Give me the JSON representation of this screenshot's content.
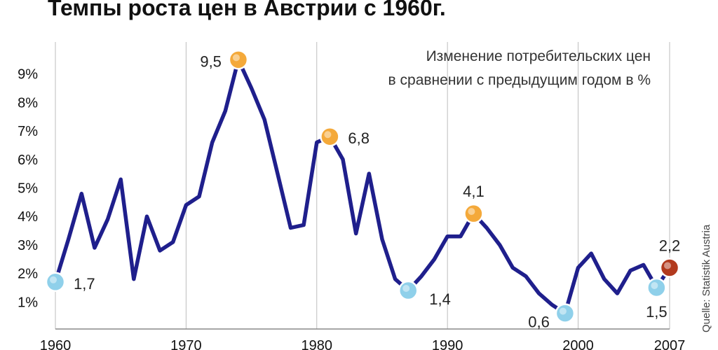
{
  "chart_data": {
    "type": "line",
    "title": "Темпы роста цен в Австрии с 1960г.",
    "annotation": [
      "Изменение потребительских цен",
      "в сравнении с предыдущим годом в %"
    ],
    "source": "Quelle: Statistik Austria",
    "x_ticks": [
      "1960",
      "1970",
      "1980",
      "1990",
      "2000",
      "2007"
    ],
    "y_ticks": [
      "1%",
      "2%",
      "3%",
      "4%",
      "5%",
      "6%",
      "7%",
      "8%",
      "9%"
    ],
    "xlim": [
      1960,
      2007
    ],
    "ylim": [
      0,
      10
    ],
    "grid": "vertical",
    "line_color": "#1f1f8c",
    "x": [
      1960,
      1961,
      1962,
      1963,
      1964,
      1965,
      1966,
      1967,
      1968,
      1969,
      1970,
      1971,
      1972,
      1973,
      1974,
      1975,
      1976,
      1977,
      1978,
      1979,
      1980,
      1981,
      1982,
      1983,
      1984,
      1985,
      1986,
      1987,
      1988,
      1989,
      1990,
      1991,
      1992,
      1993,
      1994,
      1995,
      1996,
      1997,
      1998,
      1999,
      2000,
      2001,
      2002,
      2003,
      2004,
      2005,
      2006,
      2007
    ],
    "values": [
      1.7,
      3.2,
      4.8,
      2.9,
      3.9,
      5.3,
      1.8,
      4.0,
      2.8,
      3.1,
      4.4,
      4.7,
      6.6,
      7.7,
      9.5,
      8.5,
      7.4,
      5.5,
      3.6,
      3.7,
      6.6,
      6.8,
      6.0,
      3.4,
      5.5,
      3.2,
      1.8,
      1.4,
      1.9,
      2.5,
      3.3,
      3.3,
      4.1,
      3.6,
      3.0,
      2.2,
      1.9,
      1.3,
      0.9,
      0.6,
      2.2,
      2.7,
      1.8,
      1.3,
      2.1,
      2.3,
      1.5,
      2.2
    ],
    "highlights": [
      {
        "x": 1960,
        "label": "1,7",
        "color": "#8fd0ea"
      },
      {
        "x": 1974,
        "label": "9,5",
        "color": "#f4a93a"
      },
      {
        "x": 1981,
        "label": "6,8",
        "color": "#f4a93a"
      },
      {
        "x": 1987,
        "label": "1,4",
        "color": "#8fd0ea"
      },
      {
        "x": 1992,
        "label": "4,1",
        "color": "#f4a93a"
      },
      {
        "x": 1999,
        "label": "0,6",
        "color": "#8fd0ea"
      },
      {
        "x": 2006,
        "label": "1,5",
        "color": "#8fd0ea"
      },
      {
        "x": 2007,
        "label": "2,2",
        "color": "#b23a1e"
      }
    ]
  }
}
